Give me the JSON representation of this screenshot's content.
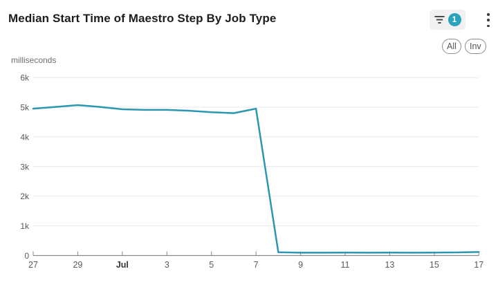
{
  "header": {
    "title": "Median Start Time of Maestro Step By Job Type",
    "filter_badge_count": "1"
  },
  "toolbar": {
    "buttons": [
      {
        "label": "All"
      },
      {
        "label": "Inv"
      }
    ]
  },
  "chart": {
    "unit_label": "milliseconds"
  },
  "colors": {
    "line": "#2b97b0",
    "badge": "#2ba3ba",
    "grid": "#e8e8e8",
    "axis": "#8a8a8a",
    "tick_label": "#595959",
    "bold_tick_label": "#333333"
  },
  "chart_data": {
    "type": "line",
    "title": "Median Start Time of Maestro Step By Job Type",
    "ylabel": "milliseconds",
    "xlabel": "",
    "ylim": [
      0,
      6000
    ],
    "grid": true,
    "legend_position": "none",
    "yticks": [
      {
        "label": "0",
        "value": 0
      },
      {
        "label": "1k",
        "value": 1000
      },
      {
        "label": "2k",
        "value": 2000
      },
      {
        "label": "3k",
        "value": 3000
      },
      {
        "label": "4k",
        "value": 4000
      },
      {
        "label": "5k",
        "value": 5000
      },
      {
        "label": "6k",
        "value": 6000
      }
    ],
    "xticks": [
      {
        "label": "27",
        "day": 0,
        "bold": false
      },
      {
        "label": "29",
        "day": 2,
        "bold": false
      },
      {
        "label": "Jul",
        "day": 4,
        "bold": true
      },
      {
        "label": "3",
        "day": 6,
        "bold": false
      },
      {
        "label": "5",
        "day": 8,
        "bold": false
      },
      {
        "label": "7",
        "day": 10,
        "bold": false
      },
      {
        "label": "9",
        "day": 12,
        "bold": false
      },
      {
        "label": "11",
        "day": 14,
        "bold": false
      },
      {
        "label": "13",
        "day": 16,
        "bold": false
      },
      {
        "label": "15",
        "day": 18,
        "bold": false
      },
      {
        "label": "17",
        "day": 20,
        "bold": false
      }
    ],
    "x": [
      "Jun 27",
      "Jun 28",
      "Jun 29",
      "Jun 30",
      "Jul 1",
      "Jul 2",
      "Jul 3",
      "Jul 4",
      "Jul 5",
      "Jul 6",
      "Jul 7",
      "Jul 8",
      "Jul 9",
      "Jul 10",
      "Jul 11",
      "Jul 12",
      "Jul 13",
      "Jul 14",
      "Jul 15",
      "Jul 16",
      "Jul 17"
    ],
    "x_day_offsets": [
      0,
      1,
      2,
      3,
      4,
      5,
      6,
      7,
      8,
      9,
      10,
      11,
      12,
      13,
      14,
      15,
      16,
      17,
      18,
      19,
      20
    ],
    "values": [
      4950,
      5010,
      5070,
      5010,
      4930,
      4910,
      4910,
      4880,
      4830,
      4800,
      4950,
      110,
      95,
      95,
      100,
      95,
      100,
      95,
      100,
      105,
      120
    ]
  }
}
